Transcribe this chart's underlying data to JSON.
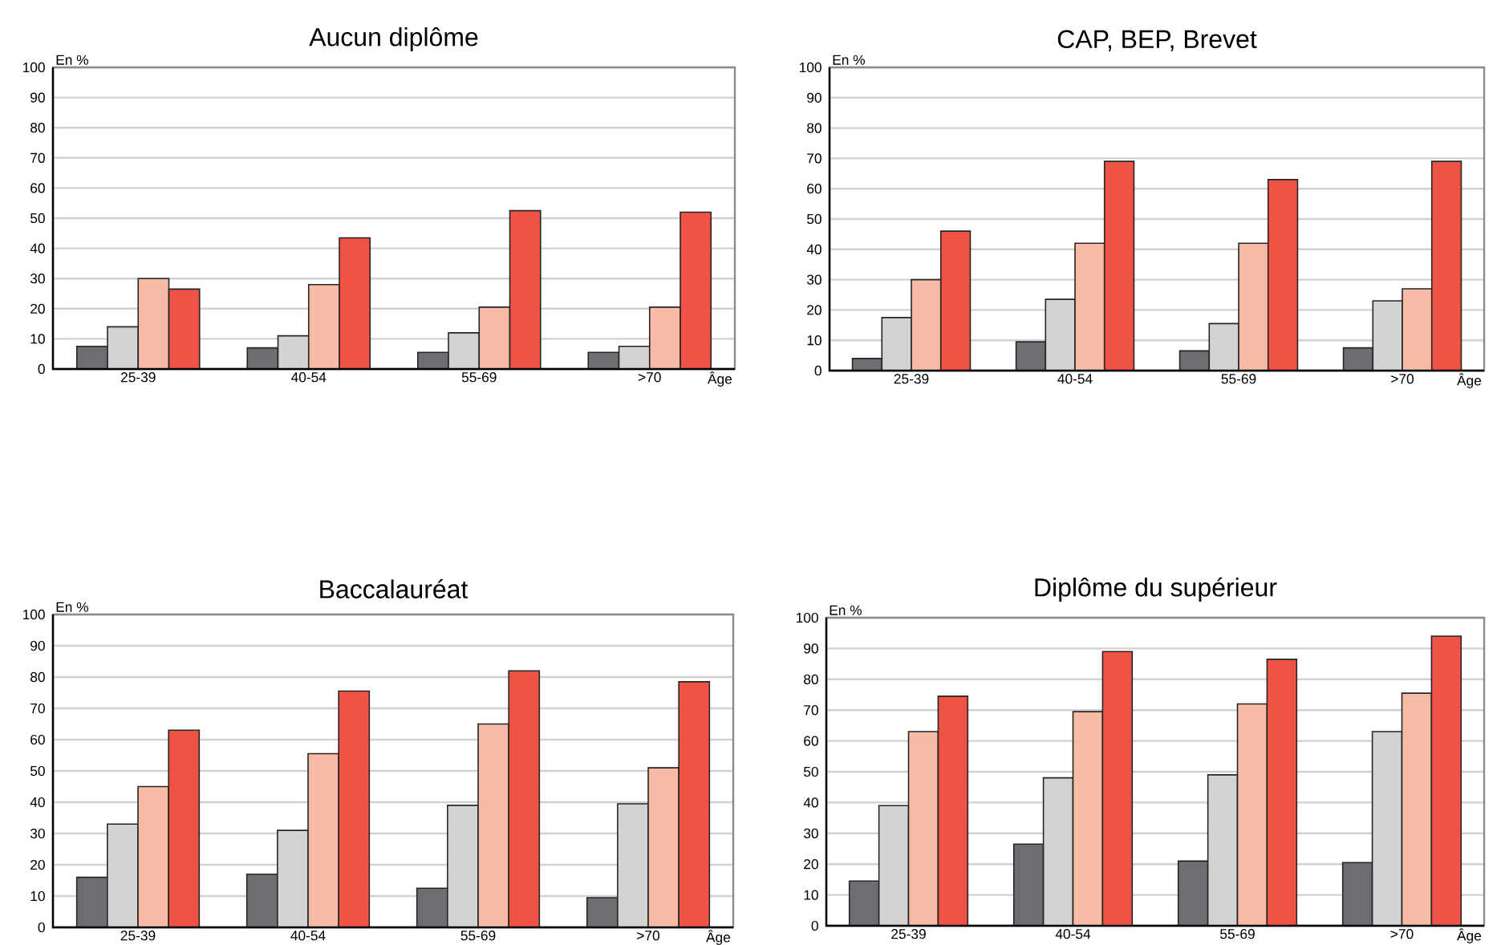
{
  "chart_data": [
    {
      "type": "bar",
      "title": "Aucun diplôme",
      "xlabel": "Âge",
      "ylabel": "En %",
      "categories": [
        "25-39",
        "40-54",
        "55-69",
        ">70"
      ],
      "ylim": [
        0,
        100
      ],
      "yticks": [
        0,
        10,
        20,
        30,
        40,
        50,
        60,
        70,
        80,
        90,
        100
      ],
      "grid": "y",
      "series": [
        {
          "color": "#6d6e71",
          "values": [
            7.5,
            7,
            5.5,
            5.5
          ]
        },
        {
          "color": "#d1d3d4",
          "values": [
            14,
            11,
            12,
            7.5
          ]
        },
        {
          "color": "#f8bba5",
          "values": [
            30,
            28,
            20.5,
            20.5
          ]
        },
        {
          "color": "#ef5345",
          "values": [
            26.5,
            43.5,
            52.5,
            52
          ]
        }
      ]
    },
    {
      "type": "bar",
      "title": "CAP, BEP, Brevet",
      "xlabel": "Âge",
      "ylabel": "En %",
      "categories": [
        "25-39",
        "40-54",
        "55-69",
        ">70"
      ],
      "ylim": [
        0,
        100
      ],
      "yticks": [
        0,
        10,
        20,
        30,
        40,
        50,
        60,
        70,
        80,
        90,
        100
      ],
      "grid": "y",
      "series": [
        {
          "color": "#6d6e71",
          "values": [
            4,
            9.5,
            6.5,
            7.5
          ]
        },
        {
          "color": "#d1d3d4",
          "values": [
            17.5,
            23.5,
            15.5,
            23
          ]
        },
        {
          "color": "#f8bba5",
          "values": [
            30,
            42,
            42,
            27
          ]
        },
        {
          "color": "#ef5345",
          "values": [
            46,
            69,
            63,
            69
          ]
        }
      ]
    },
    {
      "type": "bar",
      "title": "Baccalauréat",
      "xlabel": "Âge",
      "ylabel": "En %",
      "categories": [
        "25-39",
        "40-54",
        "55-69",
        ">70"
      ],
      "ylim": [
        0,
        100
      ],
      "yticks": [
        0,
        10,
        20,
        30,
        40,
        50,
        60,
        70,
        80,
        90,
        100
      ],
      "grid": "y",
      "series": [
        {
          "color": "#6d6e71",
          "values": [
            16,
            17,
            12.5,
            9.5
          ]
        },
        {
          "color": "#d1d3d4",
          "values": [
            33,
            31,
            39,
            39.5
          ]
        },
        {
          "color": "#f8bba5",
          "values": [
            45,
            55.5,
            65,
            51
          ]
        },
        {
          "color": "#ef5345",
          "values": [
            63,
            75.5,
            82,
            78.5
          ]
        }
      ]
    },
    {
      "type": "bar",
      "title": "Diplôme du supérieur",
      "xlabel": "Âge",
      "ylabel": "En %",
      "categories": [
        "25-39",
        "40-54",
        "55-69",
        ">70"
      ],
      "ylim": [
        0,
        100
      ],
      "yticks": [
        0,
        10,
        20,
        30,
        40,
        50,
        60,
        70,
        80,
        90,
        100
      ],
      "grid": "y",
      "series": [
        {
          "color": "#6d6e71",
          "values": [
            14.5,
            26.5,
            21,
            20.5
          ]
        },
        {
          "color": "#d1d3d4",
          "values": [
            39,
            48,
            49,
            63
          ]
        },
        {
          "color": "#f8bba5",
          "values": [
            63,
            69.5,
            72,
            75.5
          ]
        },
        {
          "color": "#ef5345",
          "values": [
            74.5,
            89,
            86.5,
            94
          ]
        }
      ]
    }
  ]
}
